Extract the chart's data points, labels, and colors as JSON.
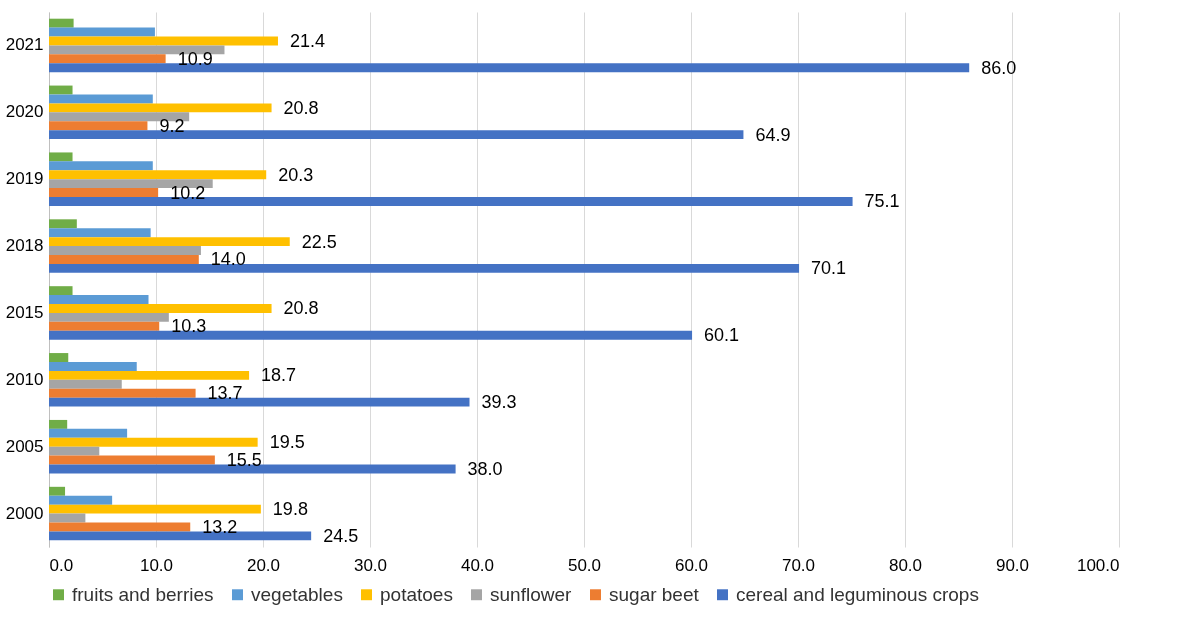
{
  "chart_data": {
    "type": "bar",
    "orientation": "horizontal",
    "categories": [
      "2021",
      "2020",
      "2019",
      "2018",
      "2015",
      "2010",
      "2005",
      "2000"
    ],
    "series": [
      {
        "name": "fruits and berries",
        "color": "#70ad47",
        "values": [
          2.3,
          2.2,
          2.2,
          2.6,
          2.2,
          1.8,
          1.7,
          1.5
        ]
      },
      {
        "name": "vegetables",
        "color": "#5b9bd5",
        "values": [
          9.9,
          9.7,
          9.7,
          9.5,
          9.3,
          8.2,
          7.3,
          5.9
        ]
      },
      {
        "name": "potatoes",
        "color": "#ffc000",
        "values": [
          21.4,
          20.8,
          20.3,
          22.5,
          20.8,
          18.7,
          19.5,
          19.8
        ],
        "value_labels": [
          "21.4",
          "20.8",
          "20.3",
          "22.5",
          "20.8",
          "18.7",
          "19.5",
          "19.8"
        ]
      },
      {
        "name": "sunflower",
        "color": "#a5a5a5",
        "values": [
          16.4,
          13.1,
          15.3,
          14.2,
          11.2,
          6.8,
          4.7,
          3.4
        ]
      },
      {
        "name": "sugar beet",
        "color": "#ed7d31",
        "values": [
          10.9,
          9.2,
          10.2,
          14.0,
          10.3,
          13.7,
          15.5,
          13.2
        ],
        "value_labels": [
          "10.9",
          "9.2",
          "10.2",
          "14.0",
          "10.3",
          "13.7",
          "15.5",
          "13.2"
        ]
      },
      {
        "name": "cereal and leguminous crops",
        "color": "#4472c4",
        "values": [
          86.0,
          64.9,
          75.1,
          70.1,
          60.1,
          39.3,
          38.0,
          24.5
        ],
        "value_labels": [
          "86.0",
          "64.9",
          "75.1",
          "70.1",
          "60.1",
          "39.3",
          "38.0",
          "24.5"
        ]
      }
    ],
    "xlim": [
      0,
      100
    ],
    "xticks": [
      {
        "value": 0,
        "label": "0.0"
      },
      {
        "value": 10,
        "label": "10.0"
      },
      {
        "value": 20,
        "label": "20.0"
      },
      {
        "value": 30,
        "label": "30.0"
      },
      {
        "value": 40,
        "label": "40.0"
      },
      {
        "value": 50,
        "label": "50.0"
      },
      {
        "value": 60,
        "label": "60.0"
      },
      {
        "value": 70,
        "label": "70.0"
      },
      {
        "value": 80,
        "label": "80.0"
      },
      {
        "value": 90,
        "label": "90.0"
      },
      {
        "value": 100,
        "label": "100.0"
      }
    ],
    "grid": "x",
    "legend": "bottom"
  }
}
